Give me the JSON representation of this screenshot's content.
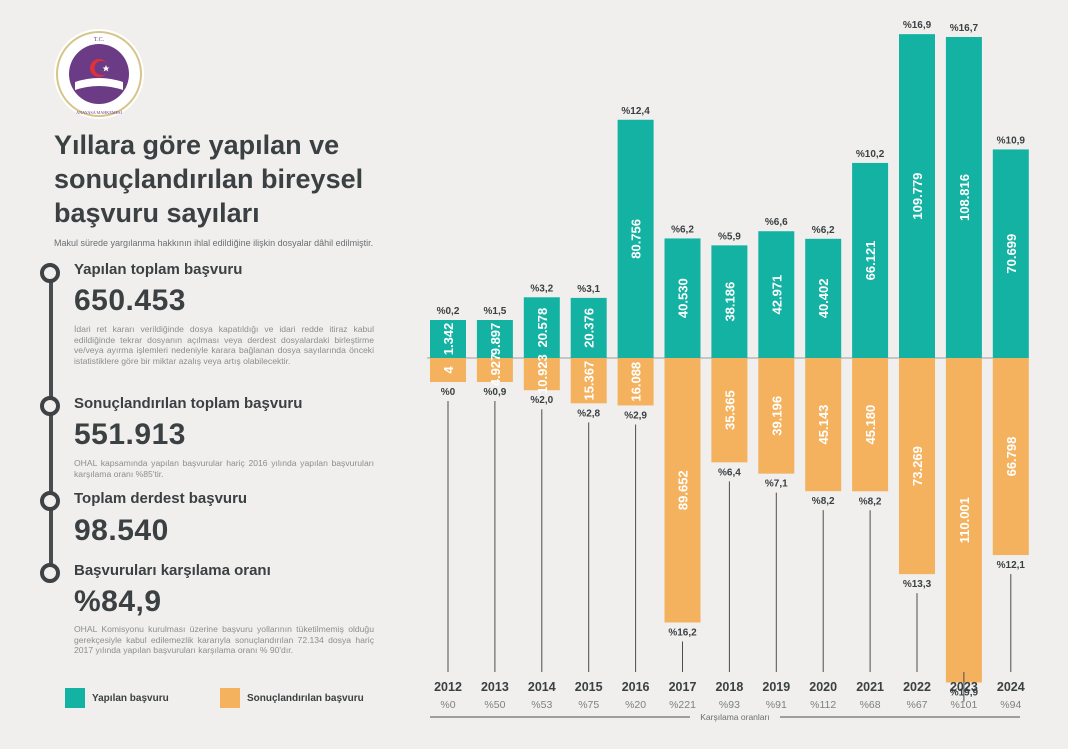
{
  "logo": {
    "top_text": "T.C.",
    "bottom_text": "ANAYASA MAHKEMESİ"
  },
  "title": "Yıllara göre yapılan ve sonuçlandırılan bireysel başvuru sayıları",
  "subtitle": "Makul sürede yargılanma hakkının ihlal edildiğine ilişkin dosyalar dâhil edilmiştir.",
  "stats": [
    {
      "label": "Yapılan toplam başvuru",
      "value": "650.453",
      "note": "İdari ret kararı verildiğinde dosya kapatıldığı ve idari redde itiraz kabul edildiğinde tekrar dosyanın açılması veya derdest dosyalardaki birleştirme ve/veya ayırma işlemleri nedeniyle karara bağlanan dosya sayılarında önceki istatistiklere göre bir miktar azalış veya artış olabilecektir."
    },
    {
      "label": "Sonuçlandırılan toplam başvuru",
      "value": "551.913",
      "note": "OHAL kapsamında yapılan başvurular hariç 2016 yılında yapılan başvuruları karşılama oranı %85'tir."
    },
    {
      "label": "Toplam derdest başvuru",
      "value": "98.540",
      "note": ""
    },
    {
      "label": "Başvuruları karşılama oranı",
      "value": "%84,9",
      "note": "OHAL Komisyonu kurulması üzerine başvuru yollarının tüketilmemiş olduğu gerekçesiyle kabul edilemezlik kararıyla sonuçlandırılan 72.134 dosya hariç 2017 yılında yapılan başvuruları karşılama oranı % 90'dır."
    }
  ],
  "legend": {
    "made": "Yapılan başvuru",
    "concluded": "Sonuçlandırılan başvuru"
  },
  "colors": {
    "made": "#14b2a2",
    "concluded": "#f4b25e",
    "text": "#3b4043"
  },
  "chart_data": {
    "type": "bar",
    "x_caption": "Karşılama oranları",
    "categories": [
      "2012",
      "2013",
      "2014",
      "2015",
      "2016",
      "2017",
      "2018",
      "2019",
      "2020",
      "2021",
      "2022",
      "2023",
      "2024"
    ],
    "series": [
      {
        "name": "Yapılan başvuru",
        "values": [
          1342,
          9897,
          20578,
          20376,
          80756,
          40530,
          38186,
          42971,
          40402,
          66121,
          109779,
          108816,
          70699
        ],
        "labels": [
          "1.342",
          "9.897",
          "20.578",
          "20.376",
          "80.756",
          "40.530",
          "38.186",
          "42.971",
          "40.402",
          "66.121",
          "109.779",
          "108.816",
          "70.699"
        ],
        "shares": [
          "%0,2",
          "%1,5",
          "%3,2",
          "%3,1",
          "%12,4",
          "%6,2",
          "%5,9",
          "%6,6",
          "%6,2",
          "%10,2",
          "%16,9",
          "%16,7",
          "%10,9"
        ]
      },
      {
        "name": "Sonuçlandırılan başvuru",
        "values": [
          4,
          4927,
          10923,
          15367,
          16088,
          89652,
          35365,
          39196,
          45143,
          45180,
          73269,
          110001,
          66798
        ],
        "labels": [
          "4",
          "4.927",
          "10.923",
          "15.367",
          "16.088",
          "89.652",
          "35.365",
          "39.196",
          "45.143",
          "45.180",
          "73.269",
          "110.001",
          "66.798"
        ],
        "shares": [
          "%0",
          "%0,9",
          "%2,0",
          "%2,8",
          "%2,9",
          "%16,2",
          "%6,4",
          "%7,1",
          "%8,2",
          "%8,2",
          "%13,3",
          "%19,9",
          "%12,1"
        ]
      }
    ],
    "coverage_ratios": [
      "%0",
      "%50",
      "%53",
      "%75",
      "%20",
      "%221",
      "%93",
      "%91",
      "%112",
      "%68",
      "%67",
      "%101",
      "%94"
    ]
  }
}
